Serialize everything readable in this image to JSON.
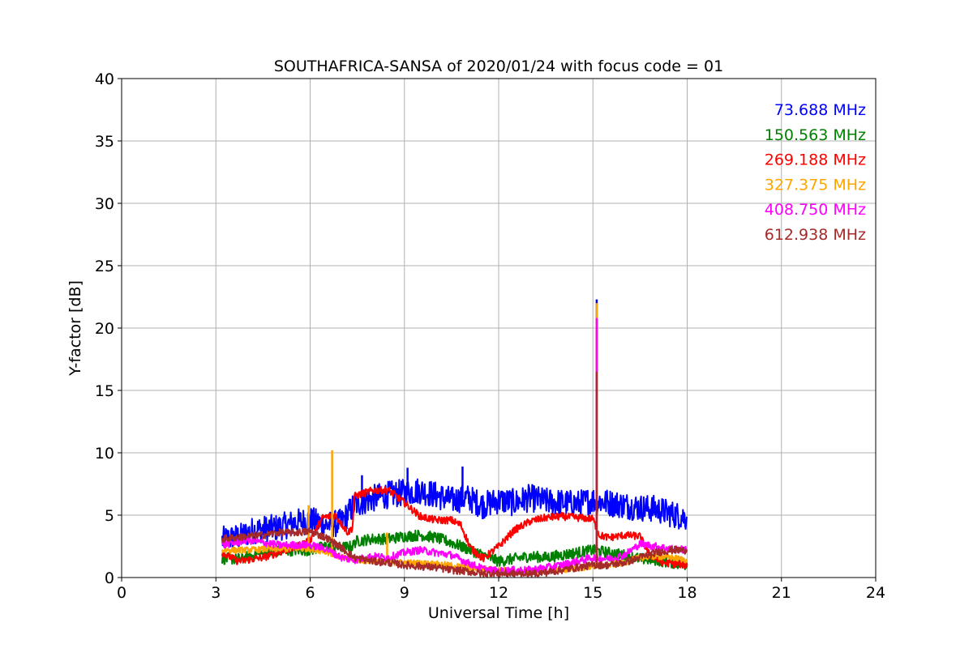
{
  "chart_data": {
    "type": "line",
    "title": "SOUTHAFRICA-SANSA of 2020/01/24 with focus code = 01",
    "xlabel": "Universal Time [h]",
    "ylabel": "Y-factor [dB]",
    "xlim": [
      0,
      24
    ],
    "ylim": [
      0,
      40
    ],
    "xticks": [
      0,
      3,
      6,
      9,
      12,
      15,
      18,
      21,
      24
    ],
    "yticks": [
      0,
      5,
      10,
      15,
      20,
      25,
      30,
      35,
      40
    ],
    "grid": true,
    "legend_position": "top-right",
    "series": [
      {
        "name": "73.688 MHz",
        "color": "#0000ff",
        "noise": 1.1,
        "x": [
          3.2,
          3.8,
          4.2,
          5.0,
          5.5,
          6.0,
          6.5,
          7.0,
          7.4,
          7.8,
          8.4,
          9.0,
          9.5,
          10.0,
          10.5,
          11.0,
          11.5,
          12.0,
          12.5,
          13.0,
          13.5,
          14.0,
          14.5,
          15.0,
          15.5,
          16.0,
          16.5,
          17.0,
          17.5,
          18.0
        ],
        "y": [
          3.0,
          3.3,
          3.8,
          4.0,
          4.4,
          4.6,
          4.2,
          4.4,
          5.8,
          6.2,
          6.6,
          6.8,
          7.0,
          6.6,
          6.2,
          6.4,
          5.8,
          6.2,
          6.0,
          6.4,
          6.1,
          6.0,
          5.9,
          6.2,
          6.0,
          5.8,
          5.6,
          5.5,
          5.1,
          4.8
        ],
        "spikes": [
          {
            "x": 15.12,
            "y": 22.3
          },
          {
            "x": 10.85,
            "y": 8.9
          },
          {
            "x": 9.1,
            "y": 8.8
          },
          {
            "x": 7.65,
            "y": 8.2
          }
        ]
      },
      {
        "name": "150.563 MHz",
        "color": "#008000",
        "noise": 0.45,
        "x": [
          3.2,
          3.8,
          4.5,
          5.0,
          5.5,
          6.0,
          6.5,
          7.0,
          7.35,
          7.45,
          8.0,
          8.5,
          9.0,
          9.5,
          10.0,
          10.5,
          11.0,
          11.5,
          12.0,
          12.5,
          13.0,
          13.5,
          14.0,
          14.5,
          15.0,
          15.5,
          16.0,
          16.5,
          17.0,
          17.5,
          18.0
        ],
        "y": [
          1.5,
          1.5,
          2.0,
          2.1,
          2.2,
          2.2,
          2.5,
          2.4,
          2.5,
          2.9,
          3.1,
          3.1,
          3.3,
          3.4,
          3.2,
          2.8,
          2.3,
          1.8,
          1.3,
          1.5,
          1.7,
          1.6,
          1.8,
          2.0,
          2.2,
          2.0,
          1.8,
          1.5,
          1.4,
          1.2,
          1.0
        ],
        "spikes": []
      },
      {
        "name": "269.188 MHz",
        "color": "#ff0000",
        "noise": 0.3,
        "x": [
          3.2,
          3.7,
          4.5,
          5.0,
          5.5,
          6.0,
          6.4,
          6.8,
          7.2,
          7.35,
          7.4,
          8.0,
          8.5,
          9.0,
          9.5,
          10.0,
          10.5,
          10.8,
          11.1,
          11.5,
          12.0,
          12.5,
          13.0,
          13.5,
          14.0,
          14.5,
          15.0,
          15.2,
          15.5,
          16.0,
          16.5,
          16.8,
          17.2,
          18.0
        ],
        "y": [
          2.0,
          1.3,
          1.6,
          2.0,
          2.4,
          3.0,
          4.8,
          5.0,
          3.6,
          4.0,
          6.5,
          7.0,
          7.0,
          6.0,
          4.9,
          4.6,
          4.6,
          4.2,
          2.4,
          1.5,
          2.5,
          3.8,
          4.5,
          4.8,
          4.9,
          4.8,
          4.7,
          3.4,
          3.2,
          3.4,
          3.3,
          1.8,
          1.2,
          1.0
        ],
        "spikes": []
      },
      {
        "name": "327.375 MHz",
        "color": "#ffa500",
        "noise": 0.25,
        "x": [
          3.2,
          4.0,
          5.0,
          6.0,
          6.5,
          7.0,
          7.5,
          8.0,
          9.0,
          10.0,
          11.0,
          12.0,
          13.0,
          14.0,
          15.0,
          15.5,
          16.0,
          16.5,
          17.0,
          17.5,
          18.0
        ],
        "y": [
          2.2,
          2.2,
          2.3,
          2.3,
          2.1,
          1.6,
          1.4,
          1.3,
          1.2,
          1.1,
          0.8,
          0.6,
          0.5,
          0.6,
          0.9,
          1.0,
          1.2,
          1.6,
          1.7,
          1.6,
          1.4
        ],
        "spikes": [
          {
            "x": 6.7,
            "y": 10.2
          },
          {
            "x": 15.12,
            "y": 22.0
          },
          {
            "x": 5.95,
            "y": 5.8
          },
          {
            "x": 8.45,
            "y": 3.6
          }
        ]
      },
      {
        "name": "408.750 MHz",
        "color": "#ff00ff",
        "noise": 0.3,
        "x": [
          3.2,
          4.0,
          5.0,
          6.0,
          6.5,
          7.0,
          7.4,
          8.0,
          8.5,
          9.0,
          9.5,
          10.0,
          10.5,
          11.0,
          11.5,
          12.0,
          12.5,
          13.0,
          13.5,
          14.0,
          14.5,
          15.0,
          15.5,
          16.0,
          16.5,
          17.0,
          17.5,
          18.0
        ],
        "y": [
          2.6,
          3.0,
          2.6,
          2.6,
          2.3,
          1.6,
          1.4,
          1.7,
          1.6,
          2.0,
          2.2,
          2.0,
          1.8,
          1.2,
          0.7,
          0.5,
          0.6,
          0.6,
          0.8,
          1.0,
          1.3,
          1.6,
          1.5,
          1.8,
          2.7,
          2.5,
          2.3,
          2.2
        ],
        "spikes": [
          {
            "x": 15.12,
            "y": 20.8
          }
        ]
      },
      {
        "name": "612.938 MHz",
        "color": "#a52a2a",
        "noise": 0.3,
        "x": [
          3.2,
          4.0,
          4.5,
          5.0,
          5.5,
          6.0,
          6.5,
          7.0,
          7.4,
          8.0,
          8.5,
          9.0,
          9.5,
          10.0,
          10.5,
          11.0,
          11.5,
          12.0,
          12.5,
          13.0,
          13.5,
          14.0,
          14.5,
          15.0,
          15.5,
          16.0,
          16.5,
          17.0,
          17.5,
          18.0
        ],
        "y": [
          3.1,
          3.3,
          3.4,
          3.6,
          3.6,
          3.7,
          3.2,
          2.4,
          1.6,
          1.3,
          1.2,
          1.0,
          0.9,
          0.8,
          0.6,
          0.5,
          0.3,
          0.3,
          0.3,
          0.3,
          0.4,
          0.6,
          0.8,
          1.0,
          1.0,
          1.2,
          1.6,
          2.0,
          2.2,
          2.2
        ],
        "spikes": [
          {
            "x": 15.12,
            "y": 16.5
          }
        ]
      }
    ]
  }
}
